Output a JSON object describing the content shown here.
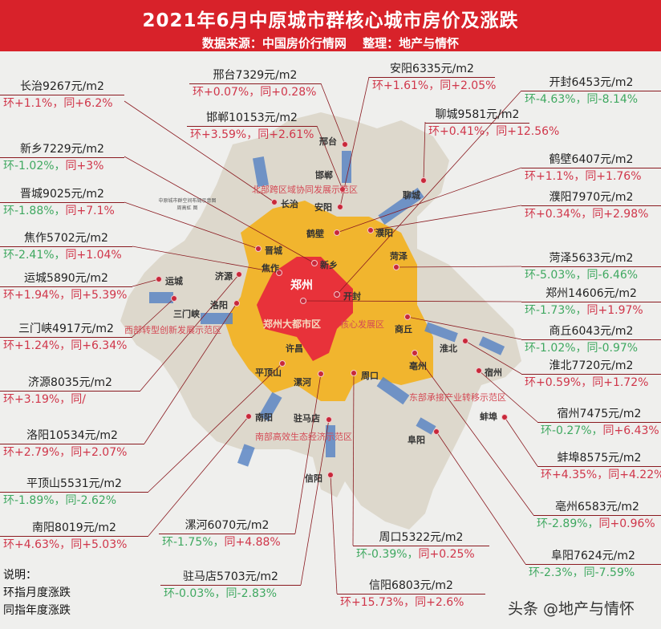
{
  "header": {
    "title": "2021年6月中原城市群核心城市房价及涨跌",
    "subtitle": "数据来源：中国房价行情网　 整理：地产与情怀"
  },
  "colors": {
    "header_bg": "#d8222a",
    "rise": "#d0364a",
    "fall": "#3fa860",
    "core": "#e8323a",
    "metro": "#f1b52e",
    "region": "#ddd8cc",
    "corridor": "#5c86c4"
  },
  "cities": [
    {
      "name": "长治",
      "price": "9267元/m2",
      "mom": "环+1.1%",
      "yoy": "同+6.2%"
    },
    {
      "name": "邢台",
      "price": "7329元/m2",
      "mom": "环+0.07%",
      "yoy": "同+0.28%"
    },
    {
      "name": "邯郸",
      "price": "10153元/m2",
      "mom": "环+3.59%",
      "yoy": "同+2.61%"
    },
    {
      "name": "新乡",
      "price": "7229元/m2",
      "mom": "环-1.02%",
      "yoy": "同+3%"
    },
    {
      "name": "晋城",
      "price": "9025元/m2",
      "mom": "环-1.88%",
      "yoy": "同+7.1%"
    },
    {
      "name": "焦作",
      "price": "5702元/m2",
      "mom": "环-2.41%",
      "yoy": "同+1.04%"
    },
    {
      "name": "运城",
      "price": "5890元/m2",
      "mom": "环+1.94%",
      "yoy": "同+5.39%"
    },
    {
      "name": "三门峡",
      "price": "4917元/m2",
      "mom": "环+1.24%",
      "yoy": "同+6.34%"
    },
    {
      "name": "济源",
      "price": "8035元/m2",
      "mom": "环+3.19%",
      "yoy": "同/"
    },
    {
      "name": "洛阳",
      "price": "10534元/m2",
      "mom": "环+2.79%",
      "yoy": "同+2.07%"
    },
    {
      "name": "平顶山",
      "price": "5531元/m2",
      "mom": "环-1.89%",
      "yoy": "同-2.62%"
    },
    {
      "name": "南阳",
      "price": "8019元/m2",
      "mom": "环+4.63%",
      "yoy": "同+5.03%"
    },
    {
      "name": "漯河",
      "price": "6070元/m2",
      "mom": "环-1.75%",
      "yoy": "同+4.88%"
    },
    {
      "name": "驻马店",
      "price": "5703元/m2",
      "mom": "环-0.03%",
      "yoy": "同-2.83%"
    },
    {
      "name": "周口",
      "price": "5322元/m2",
      "mom": "环-0.39%",
      "yoy": "同+0.25%"
    },
    {
      "name": "信阳",
      "price": "6803元/m2",
      "mom": "环+15.73%",
      "yoy": "同+2.6%"
    },
    {
      "name": "安阳",
      "price": "6335元/m2",
      "mom": "环+1.61%",
      "yoy": "同+2.05%"
    },
    {
      "name": "开封",
      "price": "6453元/m2",
      "mom": "环-4.63%",
      "yoy": "同-8.14%"
    },
    {
      "name": "聊城",
      "price": "9581元/m2",
      "mom": "环+0.41%",
      "yoy": "同+12.56%"
    },
    {
      "name": "鹤壁",
      "price": "6407元/m2",
      "mom": "环+1.1%",
      "yoy": "同+1.76%"
    },
    {
      "name": "濮阳",
      "price": "7970元/m2",
      "mom": "环+0.34%",
      "yoy": "同+2.98%"
    },
    {
      "name": "菏泽",
      "price": "5633元/m2",
      "mom": "环-5.03%",
      "yoy": "同-6.46%"
    },
    {
      "name": "郑州",
      "price": "14606元/m2",
      "mom": "环-1.73%",
      "yoy": "同+1.97%"
    },
    {
      "name": "商丘",
      "price": "6043元/m2",
      "mom": "环-1.02%",
      "yoy": "同-0.97%"
    },
    {
      "name": "淮北",
      "price": "7720元/m2",
      "mom": "环+0.59%",
      "yoy": "同+1.72%"
    },
    {
      "name": "宿州",
      "price": "7475元/m2",
      "mom": "环-0.27%",
      "yoy": "同+6.43%"
    },
    {
      "name": "蚌埠",
      "price": "8575元/m2",
      "mom": "环+4.35%",
      "yoy": "同+4.22%"
    },
    {
      "name": "亳州",
      "price": "6583元/m2",
      "mom": "环-2.89%",
      "yoy": "同+0.96%"
    },
    {
      "name": "阜阳",
      "price": "7624元/m2",
      "mom": "环-2.3%",
      "yoy": "同-7.59%"
    }
  ],
  "map_labels": [
    "邢台",
    "邯郸",
    "长治",
    "安阳",
    "聊城",
    "鹤壁",
    "濮阳",
    "晋城",
    "焦作",
    "新乡",
    "菏泽",
    "运城",
    "济源",
    "郑州",
    "开封",
    "三门峡",
    "洛阳",
    "商丘",
    "淮北",
    "许昌",
    "亳州",
    "宿州",
    "平顶山",
    "漯河",
    "周口",
    "南阳",
    "驻马店",
    "蚌埠",
    "阜阳",
    "信阳"
  ],
  "zones": [
    "北部跨区域协同发展示范区",
    "郑州大都市区",
    "核心发展区",
    "西部转型创新发展示范区",
    "东部承接产业转移示范区",
    "南部高效生态经济示范区"
  ],
  "map_caption": [
    "中原城市群空间布局示意图",
    "周高虹 图"
  ],
  "legend": {
    "title": "说明：",
    "line1": "环指月度涨跌",
    "line2": "同指年度涨跌"
  },
  "watermark": "头条 @地产与情怀"
}
